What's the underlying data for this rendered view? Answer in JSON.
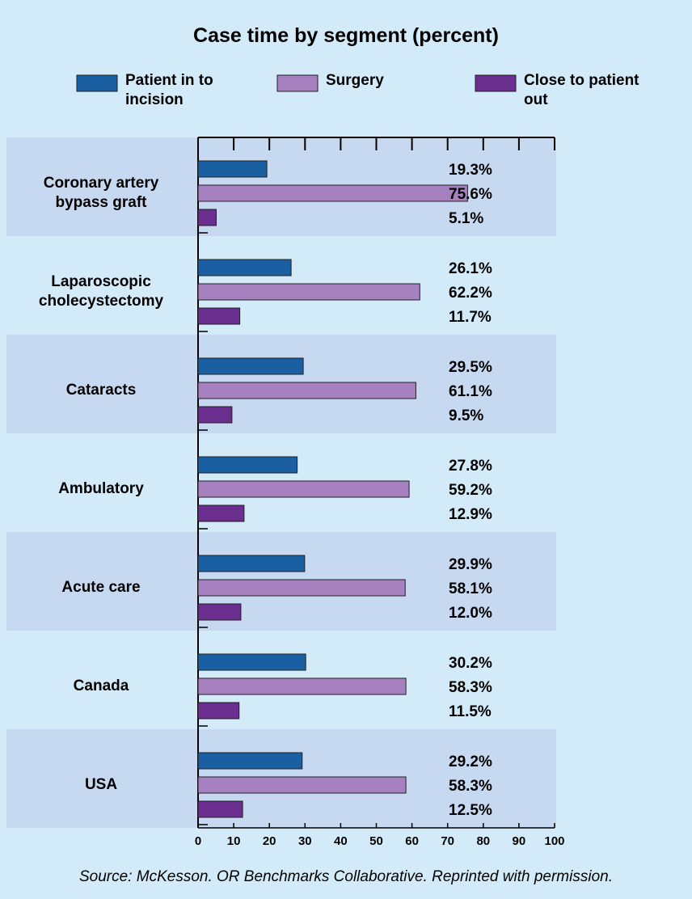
{
  "chart_data": {
    "type": "bar",
    "orientation": "horizontal",
    "title": "Case time by segment (percent)",
    "categories": [
      "Coronary artery bypass graft",
      "Laparoscopic cholecystectomy",
      "Cataracts",
      "Ambulatory",
      "Acute care",
      "Canada",
      "USA"
    ],
    "series": [
      {
        "name": "Patient in to incision",
        "color": "#1b5fa3",
        "values": [
          19.3,
          26.1,
          29.5,
          27.8,
          29.9,
          30.2,
          29.2
        ],
        "value_labels": [
          "19.3%",
          "26.1%",
          "29.5%",
          "27.8%",
          "29.9%",
          "30.2%",
          "29.2%"
        ]
      },
      {
        "name": "Surgery",
        "color": "#a680bf",
        "values": [
          75.6,
          62.2,
          61.1,
          59.2,
          58.1,
          58.3,
          58.3
        ],
        "value_labels": [
          "75.6%",
          "62.2%",
          "61.1%",
          "59.2%",
          "58.1%",
          "58.3%",
          "58.3%"
        ]
      },
      {
        "name": "Close to patient out",
        "color": "#6a2e8f",
        "values": [
          5.1,
          11.7,
          9.5,
          12.9,
          12.0,
          11.5,
          12.5
        ],
        "value_labels": [
          "5.1%",
          "11.7%",
          "9.5%",
          "12.9%",
          "12.0%",
          "11.5%",
          "12.5%"
        ]
      }
    ],
    "xlim": [
      0,
      100
    ],
    "xticks": [
      0,
      10,
      20,
      30,
      40,
      50,
      60,
      70,
      80,
      90,
      100
    ],
    "source": "Source: McKesson. OR Benchmarks Collaborative. Reprinted with permission."
  }
}
